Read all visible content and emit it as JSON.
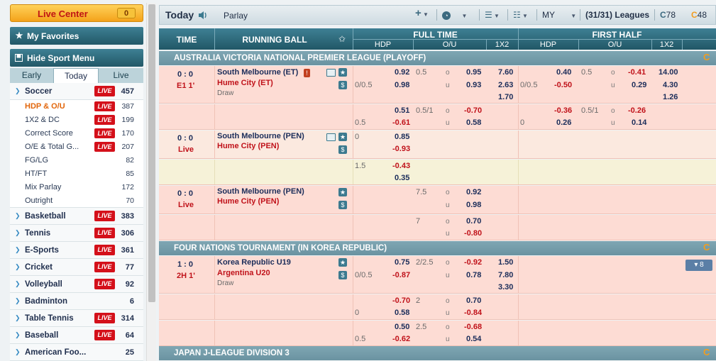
{
  "sidebar": {
    "live_center": {
      "label": "Live Center",
      "count": "0"
    },
    "my_favorites": "My Favorites",
    "hide_menu": "Hide Sport Menu",
    "tabs": [
      {
        "label": "Early"
      },
      {
        "label": "Today"
      },
      {
        "label": "Live"
      }
    ],
    "sports": [
      {
        "name": "Soccer",
        "live": "LIVE",
        "count": "457"
      },
      {
        "name": "Basketball",
        "live": "LIVE",
        "count": "383"
      },
      {
        "name": "Tennis",
        "live": "LIVE",
        "count": "306"
      },
      {
        "name": "E-Sports",
        "live": "LIVE",
        "count": "361"
      },
      {
        "name": "Cricket",
        "live": "LIVE",
        "count": "77"
      },
      {
        "name": "Volleyball",
        "live": "LIVE",
        "count": "92"
      },
      {
        "name": "Badminton",
        "live": "",
        "count": "6"
      },
      {
        "name": "Table Tennis",
        "live": "LIVE",
        "count": "314"
      },
      {
        "name": "Baseball",
        "live": "LIVE",
        "count": "64"
      },
      {
        "name": "American Foo...",
        "live": "",
        "count": "25"
      }
    ],
    "soccer_sub": [
      {
        "name": "HDP & O/U",
        "live": "LIVE",
        "count": "387"
      },
      {
        "name": "1X2 & DC",
        "live": "LIVE",
        "count": "199"
      },
      {
        "name": "Correct Score",
        "live": "LIVE",
        "count": "170"
      },
      {
        "name": "O/E & Total G...",
        "live": "LIVE",
        "count": "207"
      },
      {
        "name": "FG/LG",
        "live": "",
        "count": "82"
      },
      {
        "name": "HT/FT",
        "live": "",
        "count": "85"
      },
      {
        "name": "Mix Parlay",
        "live": "",
        "count": "172"
      },
      {
        "name": "Outright",
        "live": "",
        "count": "70"
      }
    ]
  },
  "topbar": {
    "title": "Today",
    "parlay": "Parlay",
    "odds_type": "MY",
    "leagues_count": "(31/31)",
    "leagues_label": "Leagues",
    "count_a": "78",
    "count_b": "48"
  },
  "table": {
    "headers": {
      "time": "TIME",
      "running_ball": "RUNNING BALL",
      "full_time": "FULL TIME",
      "first_half": "FIRST HALF",
      "hdp": "HDP",
      "ou": "O/U",
      "x12": "1X2"
    },
    "leagues": [
      "AUSTRALIA VICTORIA NATIONAL PREMIER LEAGUE (PLAYOFF)",
      "FOUR NATIONS TOURNAMENT (IN KOREA REPUBLIC)",
      "JAPAN J-LEAGUE DIVISION 3"
    ],
    "m1": {
      "score": "0 : 0",
      "status": "E1 1'",
      "home": "South Melbourne (ET)",
      "away": "Hume City (ET)",
      "draw": "Draw",
      "ft_hdp_line": "0/0.5",
      "ft_hdp_h": "0.92",
      "ft_hdp_a": "0.98",
      "ft_ou_line": "0.5",
      "ft_ou_o": "0.95",
      "ft_ou_u": "0.93",
      "ft_1": "7.60",
      "ft_2": "2.63",
      "ft_x": "1.70",
      "fh_hdp_line": "0/0.5",
      "fh_hdp_h": "0.40",
      "fh_hdp_a": "-0.50",
      "fh_ou_line": "0.5",
      "fh_ou_o": "-0.41",
      "fh_ou_u": "0.29",
      "fh_1": "14.00",
      "fh_2": "4.30",
      "fh_x": "1.26",
      "r2_hdp_line": "0.5",
      "r2_hdp_h": "0.51",
      "r2_hdp_a": "-0.61",
      "r2_ou_line": "0.5/1",
      "r2_ou_o": "-0.70",
      "r2_ou_u": "0.58",
      "r2_fh_line": "0",
      "r2_fh_h": "-0.36",
      "r2_fh_a": "0.26",
      "r2_fh_ou_line": "0.5/1",
      "r2_fh_ou_o": "-0.26",
      "r2_fh_ou_u": "0.14"
    },
    "m2": {
      "score": "0 : 0",
      "status": "Live",
      "home": "South Melbourne (PEN)",
      "away": "Hume City (PEN)",
      "hdp_line": "0",
      "hdp_h": "0.85",
      "hdp_a": "-0.93",
      "r2_line": "1.5",
      "r2_h": "-0.43",
      "r2_a": "0.35"
    },
    "m3": {
      "score": "0 : 0",
      "status": "Live",
      "home": "South Melbourne (PEN)",
      "away": "Hume City (PEN)",
      "ou_line": "7.5",
      "ou_o": "0.92",
      "ou_u": "0.98",
      "r2_ou_line": "7",
      "r2_ou_o": "0.70",
      "r2_ou_u": "-0.80"
    },
    "m4": {
      "score": "1 : 0",
      "status": "2H 1'",
      "home": "Korea Republic U19",
      "away": "Argentina U20",
      "draw": "Draw",
      "hdp_line": "0/0.5",
      "hdp_h": "0.75",
      "hdp_a": "-0.87",
      "ou_line": "2/2.5",
      "ou_o": "-0.92",
      "ou_u": "0.78",
      "x1": "1.50",
      "x2": "7.80",
      "xx": "3.30",
      "more": "▾ 8",
      "r2_hdp_line": "0",
      "r2_hdp_h": "-0.70",
      "r2_hdp_a": "0.58",
      "r2_ou_line": "2",
      "r2_ou_o": "0.70",
      "r2_ou_u": "-0.84",
      "r3_hdp_line": "0.5",
      "r3_hdp_h": "0.50",
      "r3_hdp_a": "-0.62",
      "r3_ou_line": "2.5",
      "r3_ou_o": "-0.68",
      "r3_ou_u": "0.54"
    },
    "ou_o": "o",
    "ou_u": "u"
  }
}
